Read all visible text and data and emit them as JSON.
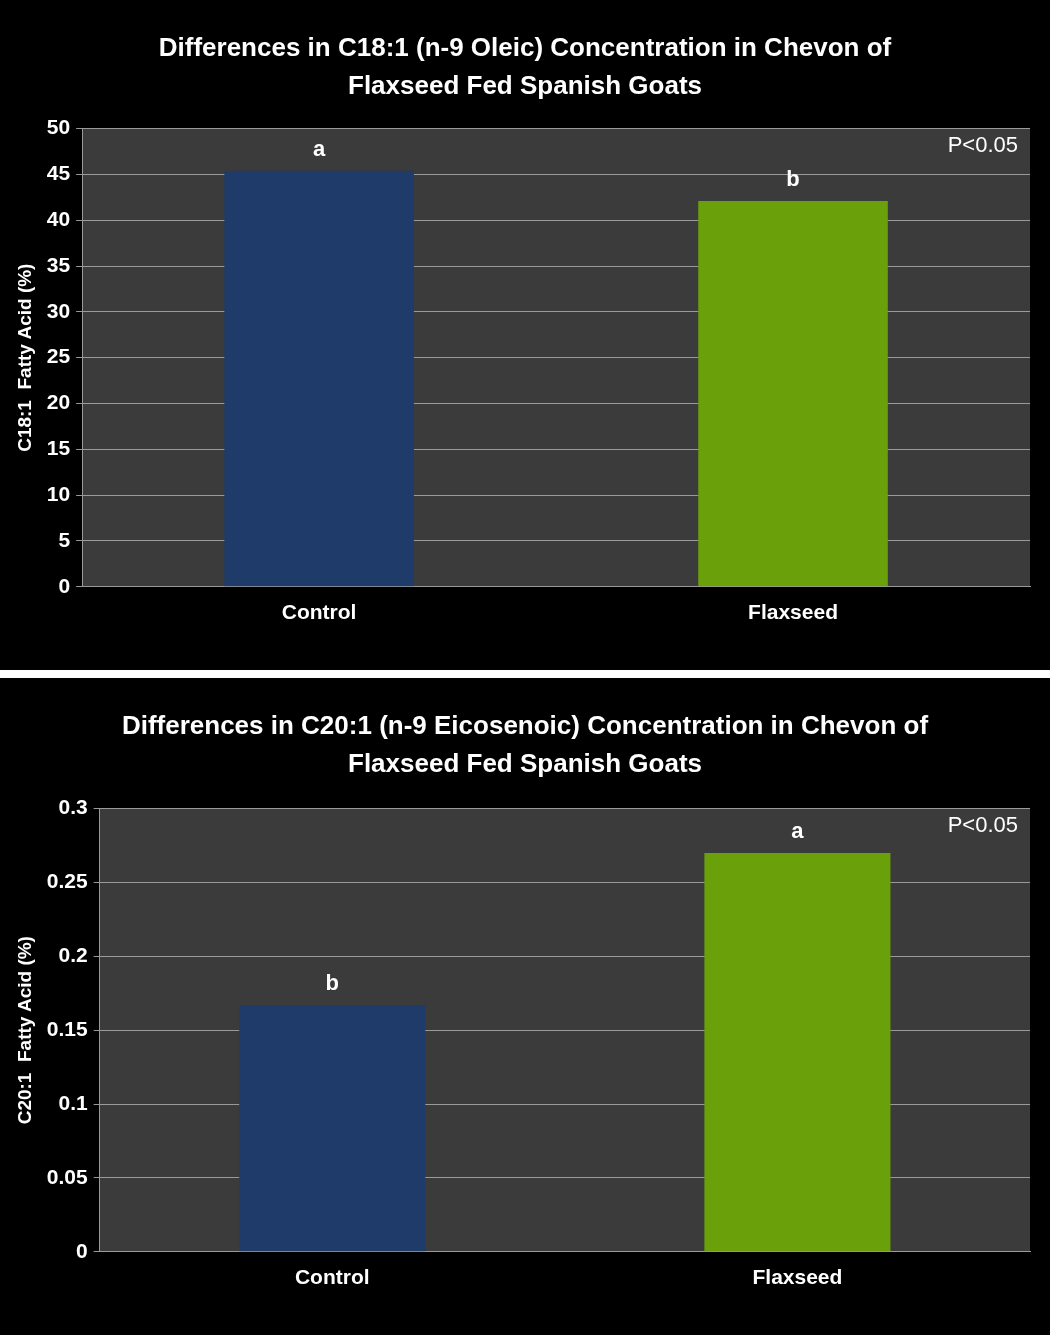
{
  "chart_data": [
    {
      "type": "bar",
      "title": "Differences in C18:1 (n-9 Oleic) Concentration in Chevon of Flaxseed Fed  Spanish Goats",
      "ylabel": "C18:1  Fatty Acid (%)",
      "categories": [
        "Control",
        "Flaxseed"
      ],
      "values": [
        45.4,
        42.1
      ],
      "colors": [
        "#1f3b6a",
        "#6aa00a"
      ],
      "ylim": [
        0,
        50
      ],
      "yticks": [
        0,
        5,
        10,
        15,
        20,
        25,
        30,
        35,
        40,
        45,
        50
      ],
      "grid": "y",
      "legend": false,
      "annotations": [
        {
          "text": "a",
          "x": "Control",
          "y": 45.4
        },
        {
          "text": "b",
          "x": "Flaxseed",
          "y": 42.1
        },
        "P<0.05"
      ]
    },
    {
      "type": "bar",
      "title": "Differences in C20:1 (n-9  Eicosenoic) Concentration in Chevon  of Flaxseed Fed  Spanish Goats",
      "ylabel": "C20:1  Fatty Acid (%)",
      "categories": [
        "Control",
        "Flaxseed"
      ],
      "values": [
        0.167,
        0.27
      ],
      "colors": [
        "#1f3b6a",
        "#6aa00a"
      ],
      "ylim": [
        0,
        0.3
      ],
      "yticks": [
        0,
        0.05,
        0.1,
        0.15,
        0.2,
        0.25,
        0.3
      ],
      "grid": "y",
      "legend": false,
      "annotations": [
        {
          "text": "b",
          "x": "Control",
          "y": 0.167
        },
        {
          "text": "a",
          "x": "Flaxseed",
          "y": 0.27
        },
        "P<0.05"
      ]
    }
  ]
}
